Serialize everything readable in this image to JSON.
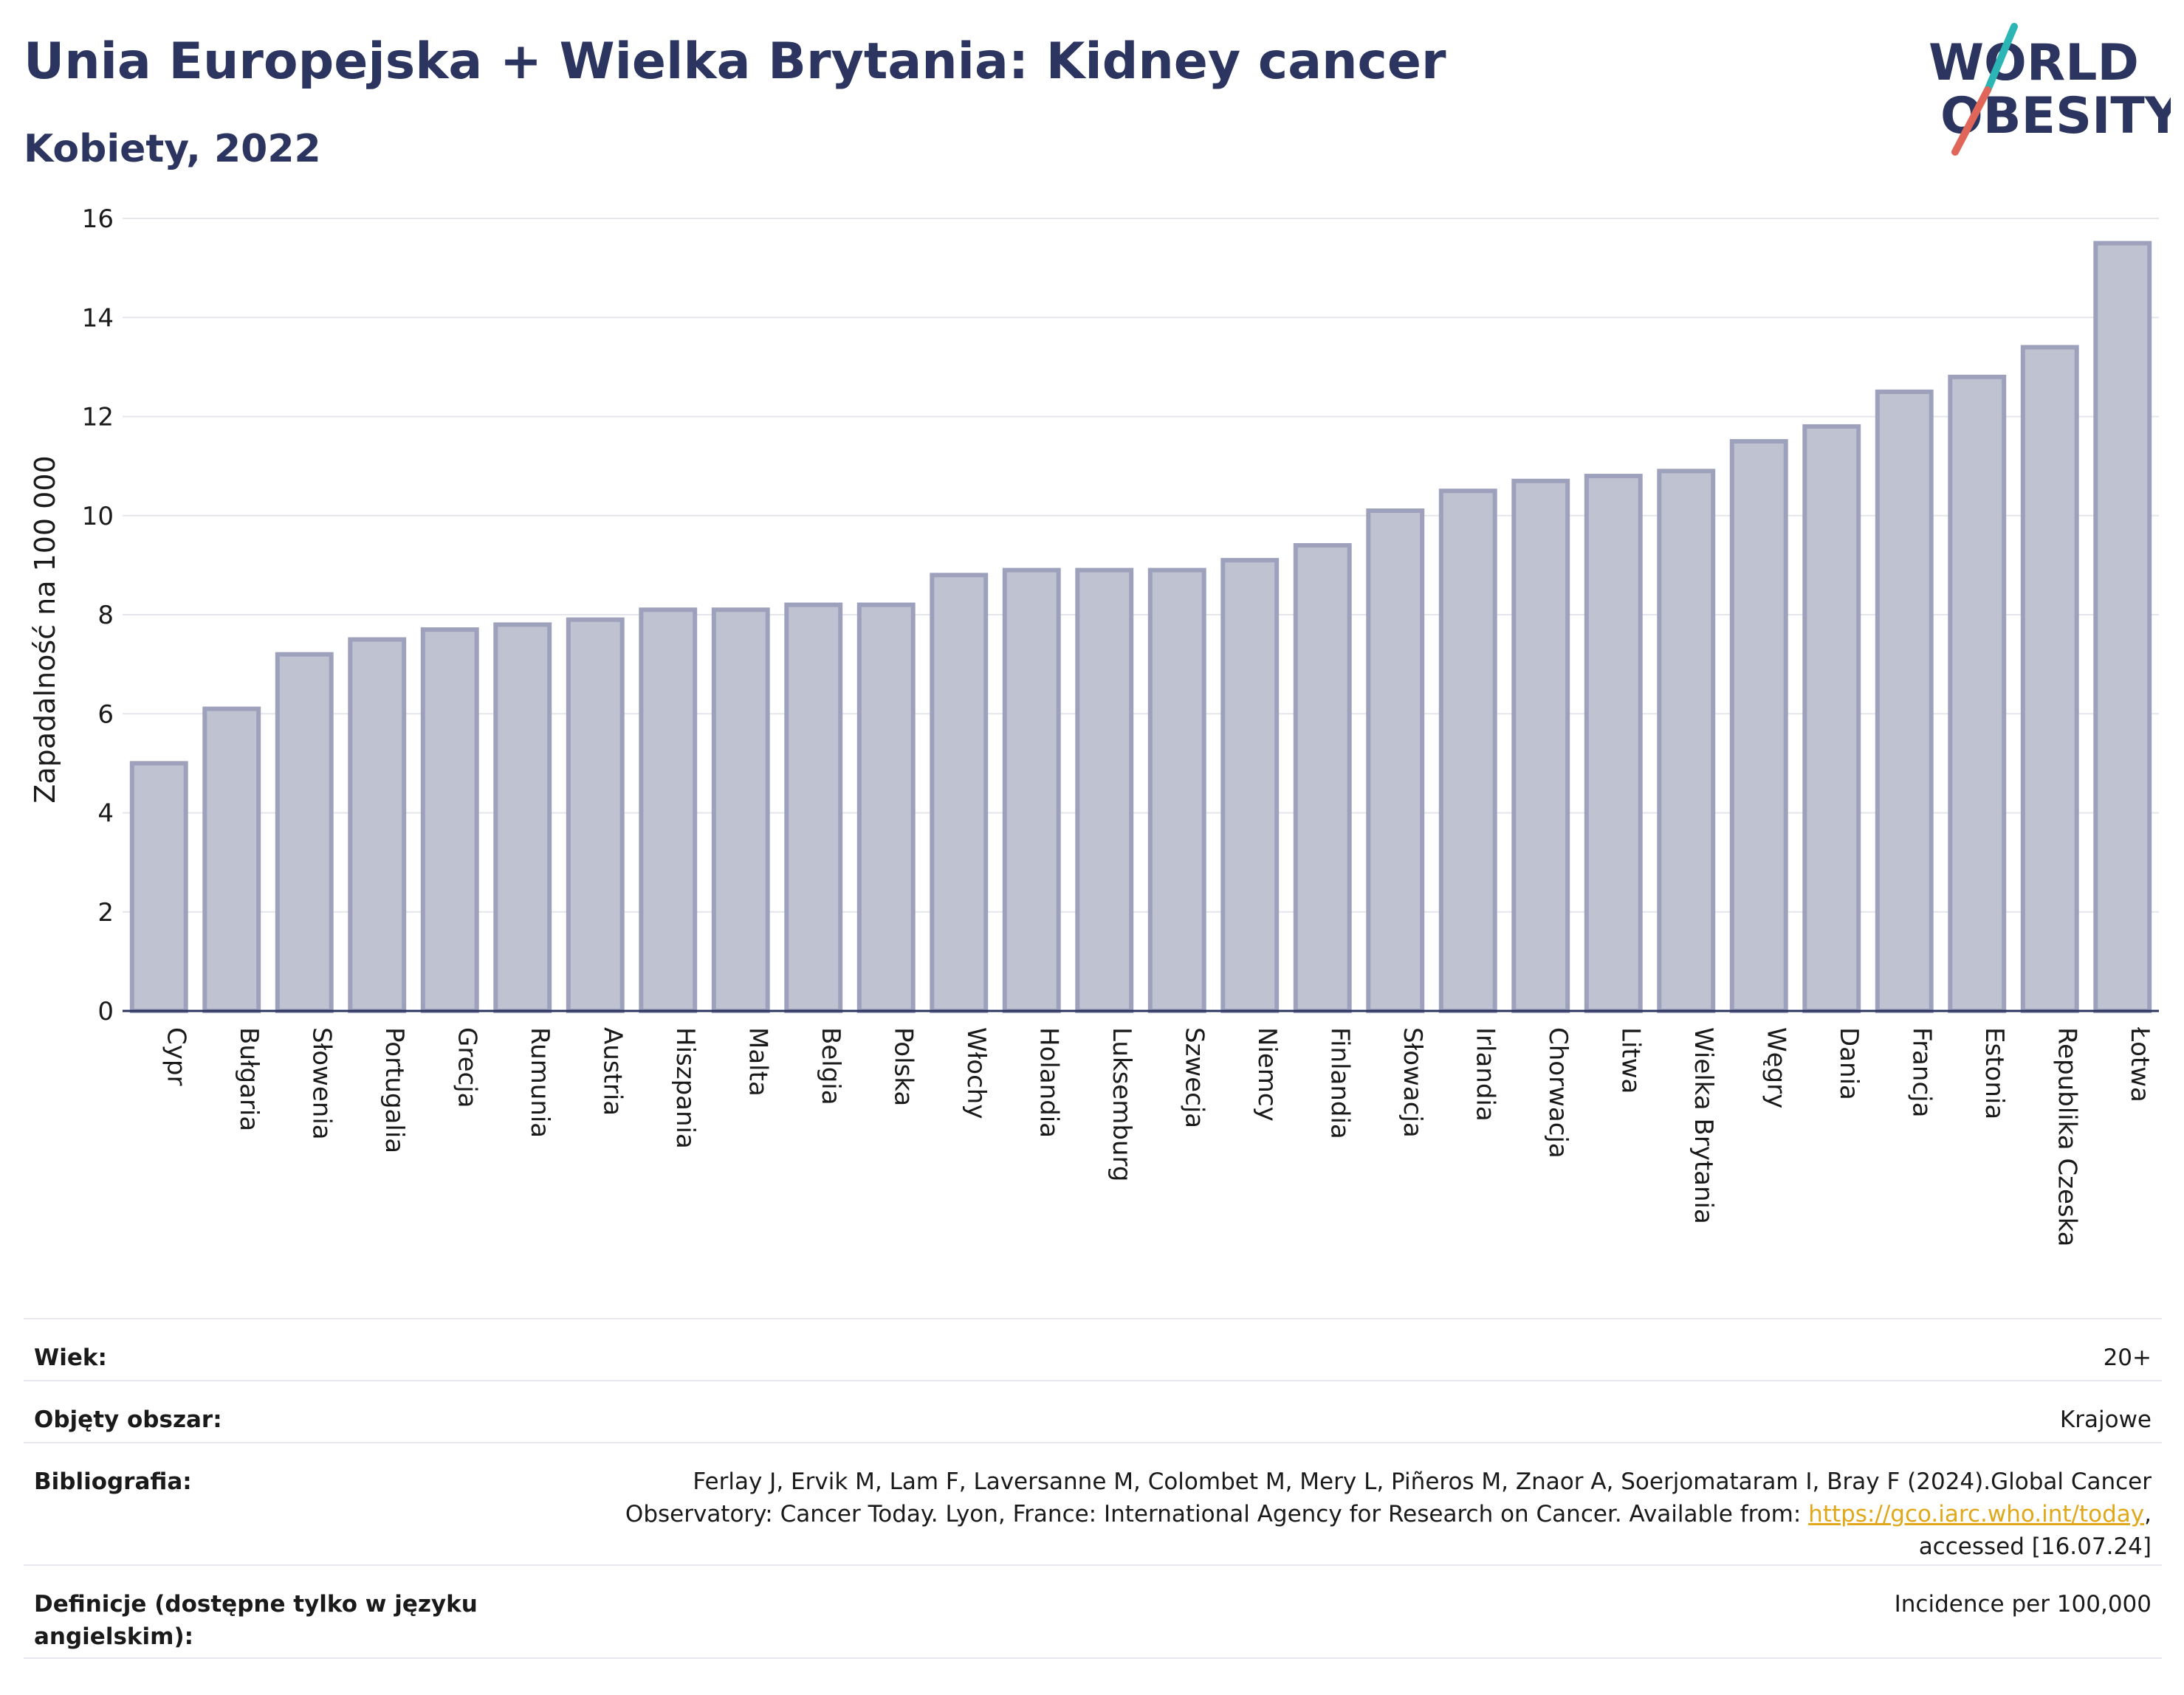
{
  "header": {
    "title": "Unia Europejska + Wielka Brytania: Kidney cancer",
    "subtitle": "Kobiety, 2022"
  },
  "logo": {
    "line1": "WORLD",
    "line2": "OBESITY",
    "accent_teal": "#2cb5b5",
    "accent_red": "#e0665a",
    "text_color": "#2b3560"
  },
  "chart_data": {
    "type": "bar",
    "title": "Unia Europejska + Wielka Brytania: Kidney cancer",
    "subtitle": "Kobiety, 2022",
    "xlabel": "",
    "ylabel": "Zapadalność na 100 000",
    "ylim": [
      0,
      16
    ],
    "yticks": [
      0,
      2,
      4,
      6,
      8,
      10,
      12,
      14,
      16
    ],
    "grid": true,
    "bar_fill": "#bfc2d0",
    "bar_stroke": "#9da1bb",
    "categories": [
      "Cypr",
      "Bułgaria",
      "Słowenia",
      "Portugalia",
      "Grecja",
      "Rumunia",
      "Austria",
      "Hiszpania",
      "Malta",
      "Belgia",
      "Polska",
      "Włochy",
      "Holandia",
      "Luksemburg",
      "Szwecja",
      "Niemcy",
      "Finlandia",
      "Słowacja",
      "Irlandia",
      "Chorwacja",
      "Litwa",
      "Wielka Brytania",
      "Węgry",
      "Dania",
      "Francja",
      "Estonia",
      "Republika Czeska",
      "Łotwa"
    ],
    "values": [
      5.0,
      6.1,
      7.2,
      7.5,
      7.7,
      7.8,
      7.9,
      8.1,
      8.1,
      8.2,
      8.2,
      8.8,
      8.9,
      8.9,
      8.9,
      9.1,
      9.4,
      10.1,
      10.5,
      10.7,
      10.8,
      10.9,
      11.5,
      11.8,
      12.5,
      12.8,
      13.4,
      15.5
    ]
  },
  "meta": {
    "age_label": "Wiek:",
    "age_value": "20+",
    "coverage_label": "Objęty obszar:",
    "coverage_value": "Krajowe",
    "bibliography_label": "Bibliografia:",
    "bibliography_text_1": "Ferlay J, Ervik M, Lam F, Laversanne M, Colombet M, Mery L, Piñeros M, Znaor A, Soerjomataram I, Bray F (2024).Global Cancer",
    "bibliography_text_2": "Observatory: Cancer Today. Lyon, France: International Agency for Research on Cancer. Available from: ",
    "bibliography_link": "https://gco.iarc.who.int/today",
    "bibliography_text_3": ",",
    "bibliography_text_4": "accessed [16.07.24]",
    "definitions_label": "Definicje (dostępne tylko w języku angielskim):",
    "definitions_value": "Incidence per 100,000"
  }
}
